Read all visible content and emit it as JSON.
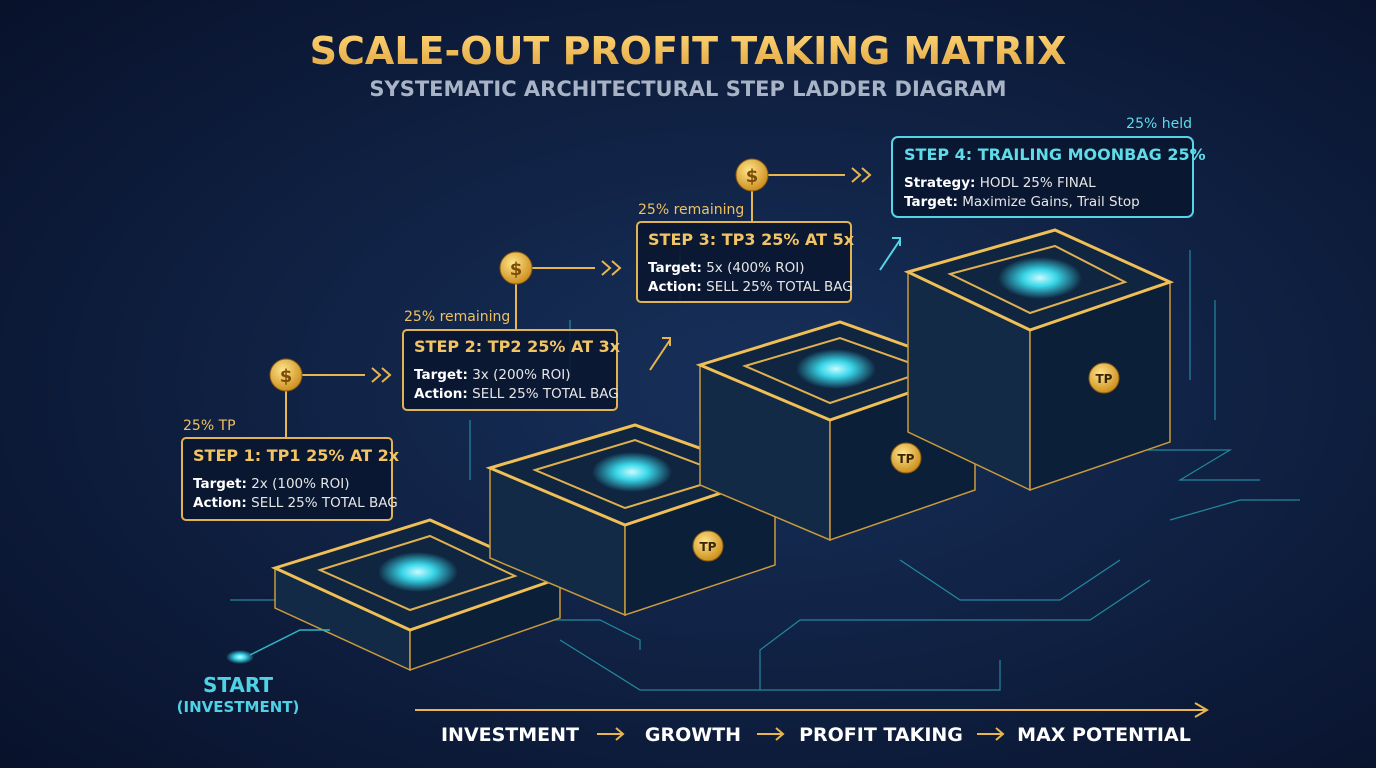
{
  "header": {
    "title": "SCALE-OUT PROFIT TAKING MATRIX",
    "subtitle": "SYSTEMATIC ARCHITECTURAL STEP LADDER DIAGRAM"
  },
  "steps": [
    {
      "note": "25% TP",
      "coin": "$",
      "heading": "STEP 1: TP1 25% AT 2x",
      "lines": [
        {
          "label": "Target:",
          "text": "2x (100% ROI)"
        },
        {
          "label": "Action:",
          "text": "SELL 25% TOTAL BAG"
        }
      ]
    },
    {
      "note": "25% remaining",
      "coin": "$",
      "heading": "STEP 2: TP2 25% AT 3x",
      "lines": [
        {
          "label": "Target:",
          "text": "3x (200% ROI)"
        },
        {
          "label": "Action:",
          "text": "SELL 25% TOTAL BAG"
        }
      ]
    },
    {
      "note": "25% remaining",
      "coin": "$",
      "heading": "STEP 3: TP3 25% AT 5x",
      "lines": [
        {
          "label": "Target:",
          "text": "5x (400% ROI)"
        },
        {
          "label": "Action:",
          "text": "SELL 25% TOTAL BAG"
        }
      ]
    },
    {
      "note": "25% held",
      "heading": "STEP 4: TRAILING MOONBAG 25%",
      "lines": [
        {
          "label": "Strategy:",
          "text": "HODL 25% FINAL"
        },
        {
          "label": "Target:",
          "text": "Maximize Gains, Trail Stop"
        }
      ]
    }
  ],
  "badges": [
    "TP",
    "TP",
    "TP"
  ],
  "start": {
    "label": "START",
    "sublabel": "(INVESTMENT)"
  },
  "flow": [
    "INVESTMENT",
    "GROWTH",
    "PROFIT TAKING",
    "MAX POTENTIAL"
  ]
}
